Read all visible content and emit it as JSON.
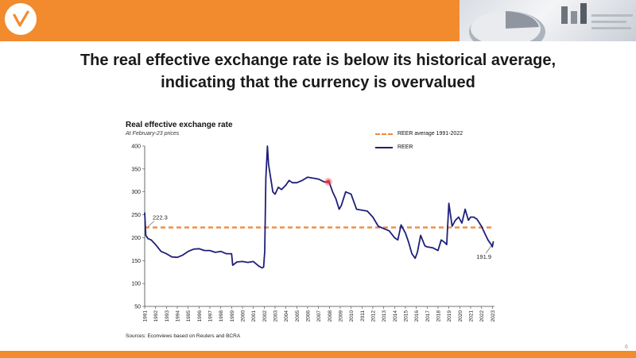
{
  "slide": {
    "title_line1": "The real effective exchange rate is below its historical average,",
    "title_line2": "indicating that the currency is overvalued",
    "page_number": "6",
    "accent_color": "#f28a2e"
  },
  "chart_data": {
    "type": "line",
    "title": "Real effective exchange rate",
    "subtitle": "At February-23 prices",
    "source": "Sources: Econviews based on Reuters and BCRA",
    "xlabel": "",
    "ylabel": "",
    "ylim": [
      50,
      400
    ],
    "yticks": [
      50,
      100,
      150,
      200,
      250,
      300,
      350,
      400
    ],
    "xlim": [
      1991,
      2023.2
    ],
    "xticks": [
      "1991",
      "1992",
      "1993",
      "1994",
      "1995",
      "1996",
      "1997",
      "1998",
      "1999",
      "2000",
      "2001",
      "2002",
      "2003",
      "2004",
      "2005",
      "2006",
      "2007",
      "2008",
      "2009",
      "2010",
      "2011",
      "2012",
      "2013",
      "2014",
      "2015",
      "2016",
      "2017",
      "2018",
      "2019",
      "2020",
      "2021",
      "2022",
      "2023"
    ],
    "grid": false,
    "legend_position": "top-right",
    "series": [
      {
        "name": "REER average 1991-2022",
        "style": "dashed",
        "color": "#f08a3c",
        "value": 222.3
      },
      {
        "name": "REER",
        "style": "solid",
        "color": "#1f1f7a",
        "x": [
          1991.0,
          1991.1,
          1991.3,
          1991.6,
          1992.0,
          1992.5,
          1993.0,
          1993.5,
          1994.0,
          1994.5,
          1995.0,
          1995.5,
          1996.0,
          1996.5,
          1997.0,
          1997.5,
          1998.0,
          1998.5,
          1999.0,
          1999.1,
          1999.5,
          2000.0,
          2000.5,
          2001.0,
          2001.5,
          2001.8,
          2001.95,
          2002.05,
          2002.15,
          2002.3,
          2002.4,
          2002.6,
          2002.8,
          2003.0,
          2003.3,
          2003.6,
          2004.0,
          2004.3,
          2004.6,
          2005.0,
          2005.5,
          2006.0,
          2006.5,
          2007.0,
          2007.5,
          2008.0,
          2008.3,
          2008.6,
          2008.9,
          2009.1,
          2009.5,
          2010.0,
          2010.5,
          2011.0,
          2011.5,
          2012.0,
          2012.5,
          2013.0,
          2013.5,
          2014.0,
          2014.3,
          2014.6,
          2015.0,
          2015.3,
          2015.6,
          2015.9,
          2016.1,
          2016.4,
          2016.8,
          2017.0,
          2017.5,
          2018.0,
          2018.3,
          2018.6,
          2018.8,
          2019.0,
          2019.3,
          2019.6,
          2019.9,
          2020.2,
          2020.5,
          2020.8,
          2021.0,
          2021.3,
          2021.6,
          2022.0,
          2022.3,
          2022.6,
          2022.9,
          2023.0,
          2023.1
        ],
        "values": [
          255,
          205,
          198,
          195,
          185,
          170,
          165,
          158,
          157,
          162,
          170,
          175,
          176,
          172,
          172,
          168,
          170,
          165,
          165,
          140,
          147,
          148,
          146,
          148,
          138,
          134,
          136,
          170,
          330,
          400,
          360,
          330,
          300,
          295,
          310,
          305,
          315,
          325,
          320,
          320,
          325,
          332,
          330,
          328,
          322,
          320,
          300,
          285,
          262,
          270,
          300,
          295,
          262,
          260,
          258,
          245,
          225,
          220,
          215,
          200,
          195,
          228,
          210,
          190,
          165,
          155,
          168,
          205,
          182,
          180,
          178,
          172,
          195,
          190,
          185,
          275,
          225,
          238,
          245,
          232,
          262,
          238,
          245,
          245,
          240,
          225,
          210,
          195,
          185,
          180,
          192
        ]
      }
    ],
    "annotations": [
      {
        "text": "222.3",
        "x": 1991,
        "y": 222.3
      },
      {
        "text": "191.9",
        "x": 2023,
        "y": 191.9
      }
    ],
    "highlight_point": {
      "x": 2007.9,
      "y": 322,
      "color": "#e8323c"
    }
  }
}
